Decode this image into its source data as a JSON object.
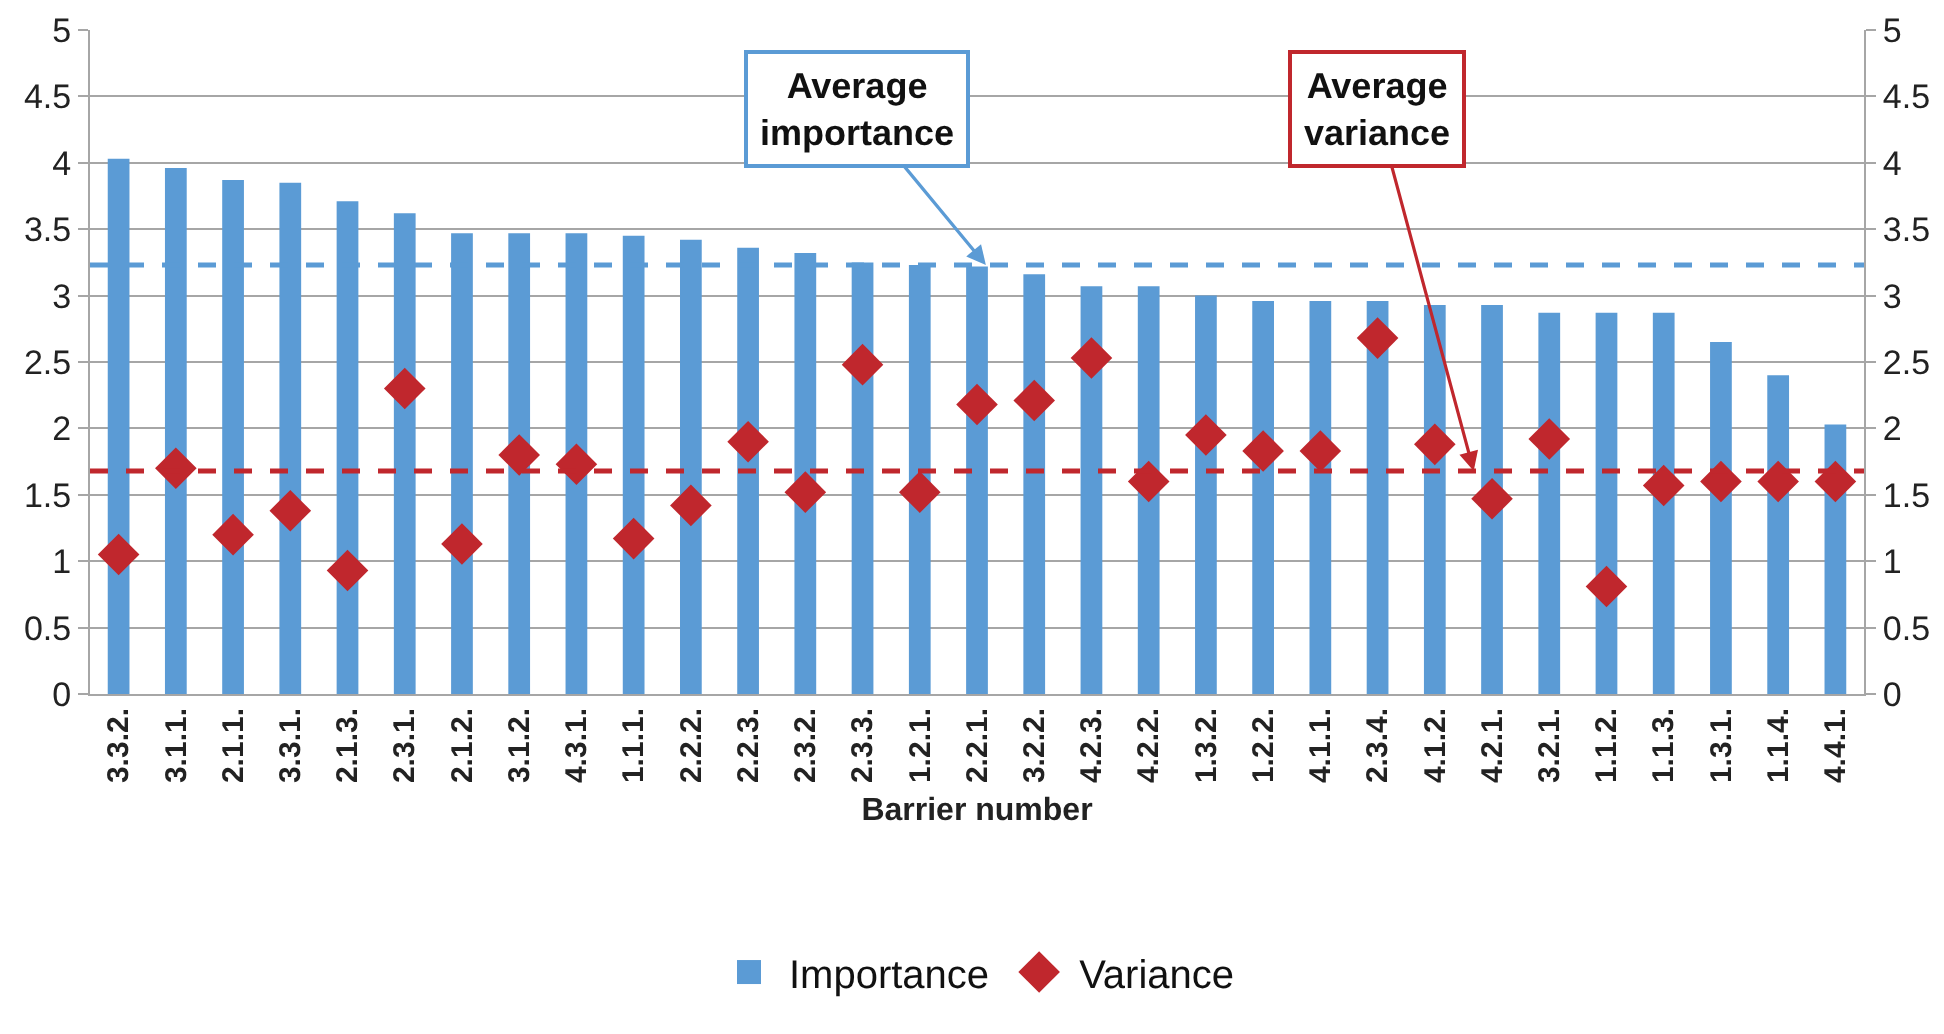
{
  "chart_data": {
    "type": "bar",
    "xlabel": "Barrier number",
    "categories": [
      "3.3.2.",
      "3.1.1.",
      "2.1.1.",
      "3.3.1.",
      "2.1.3.",
      "2.3.1.",
      "2.1.2.",
      "3.1.2.",
      "4.3.1.",
      "1.1.1.",
      "2.2.2.",
      "2.2.3.",
      "2.3.2.",
      "2.3.3.",
      "1.2.1.",
      "2.2.1.",
      "3.2.2.",
      "4.2.3.",
      "4.2.2.",
      "1.3.2.",
      "1.2.2.",
      "4.1.1.",
      "2.3.4.",
      "4.1.2.",
      "4.2.1.",
      "3.2.1.",
      "1.1.2.",
      "1.1.3.",
      "1.3.1.",
      "1.1.4.",
      "4.4.1."
    ],
    "series": [
      {
        "name": "Importance",
        "color": "#5b9bd5",
        "values": [
          4.03,
          3.96,
          3.87,
          3.85,
          3.71,
          3.62,
          3.47,
          3.47,
          3.47,
          3.45,
          3.42,
          3.36,
          3.32,
          3.25,
          3.23,
          3.22,
          3.16,
          3.07,
          3.07,
          3.0,
          2.96,
          2.96,
          2.96,
          2.93,
          2.93,
          2.87,
          2.87,
          2.87,
          2.65,
          2.4,
          2.03
        ]
      },
      {
        "name": "Variance",
        "type": "scatter",
        "marker": "diamond",
        "color": "#c0272d",
        "values": [
          1.05,
          1.7,
          1.2,
          1.38,
          0.93,
          2.3,
          1.13,
          1.8,
          1.73,
          1.17,
          1.42,
          1.9,
          1.52,
          2.48,
          1.52,
          2.18,
          2.21,
          2.53,
          1.6,
          1.95,
          1.83,
          1.83,
          2.68,
          1.88,
          1.47,
          1.92,
          0.81,
          1.57,
          1.6,
          1.6,
          1.6
        ]
      }
    ],
    "ylim": [
      0,
      5
    ],
    "yticks": [
      0,
      0.5,
      1,
      1.5,
      2,
      2.5,
      3,
      3.5,
      4,
      4.5,
      5
    ],
    "y2lim": [
      0,
      5
    ],
    "y2ticks": [
      0,
      0.5,
      1,
      1.5,
      2,
      2.5,
      3,
      3.5,
      4,
      4.5,
      5
    ],
    "ref_lines": [
      {
        "axis": "y",
        "value": 3.23,
        "label": "Average importance",
        "color": "#5b9bd5",
        "line_style": "dashed"
      },
      {
        "axis": "y",
        "value": 1.68,
        "label": "Average variance",
        "color": "#c0272d",
        "line_style": "dashed"
      }
    ],
    "grid": "y",
    "legend": "bottom"
  }
}
